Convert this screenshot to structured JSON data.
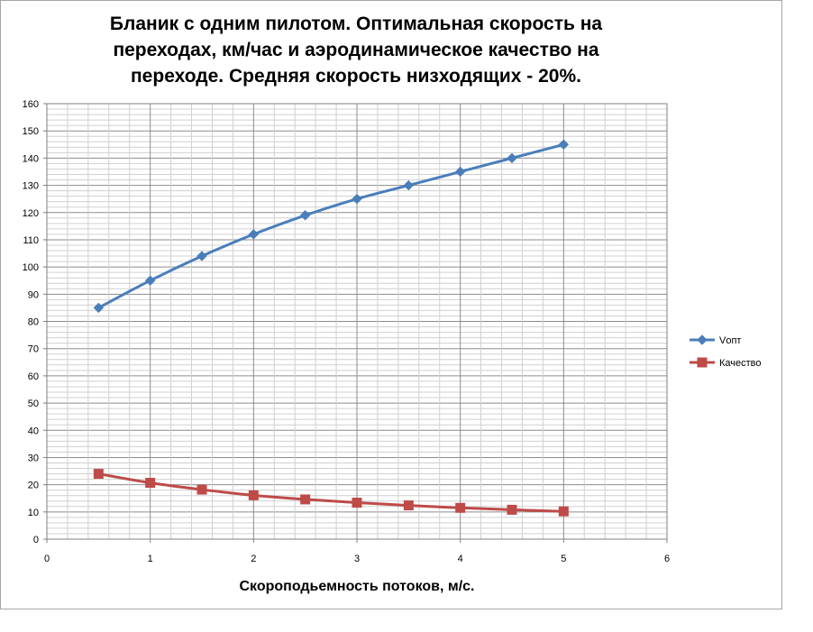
{
  "chart_data": {
    "type": "line",
    "title": "Бланик с одним пилотом. Оптимальная скорость на\nпереходах, км/час и аэродинамическое качество на\nпереходе. Средняя скорость низходящих - 20%.",
    "xlabel": "Скороподьемность потоков, м/с.",
    "ylabel": "",
    "xlim": [
      0,
      6
    ],
    "ylim": [
      0,
      160
    ],
    "x_ticks": [
      "0",
      "1",
      "2",
      "3",
      "4",
      "5",
      "6"
    ],
    "y_ticks": [
      "0",
      "10",
      "20",
      "30",
      "40",
      "50",
      "60",
      "70",
      "80",
      "90",
      "100",
      "110",
      "120",
      "130",
      "140",
      "150",
      "160"
    ],
    "grid": true,
    "legend_position": "right",
    "x": [
      0.5,
      1.0,
      1.5,
      2.0,
      2.5,
      3.0,
      3.5,
      4.0,
      4.5,
      5.0
    ],
    "series": [
      {
        "name": "Vопт",
        "color": "#4a7ebb",
        "marker": "diamond",
        "values": [
          85,
          95,
          104,
          112,
          119,
          125,
          130,
          135,
          140,
          145
        ]
      },
      {
        "name": "Качество",
        "color": "#be4b48",
        "marker": "square",
        "values": [
          24,
          20.7,
          18.2,
          16.1,
          14.6,
          13.4,
          12.4,
          11.5,
          10.8,
          10.2
        ]
      }
    ]
  }
}
